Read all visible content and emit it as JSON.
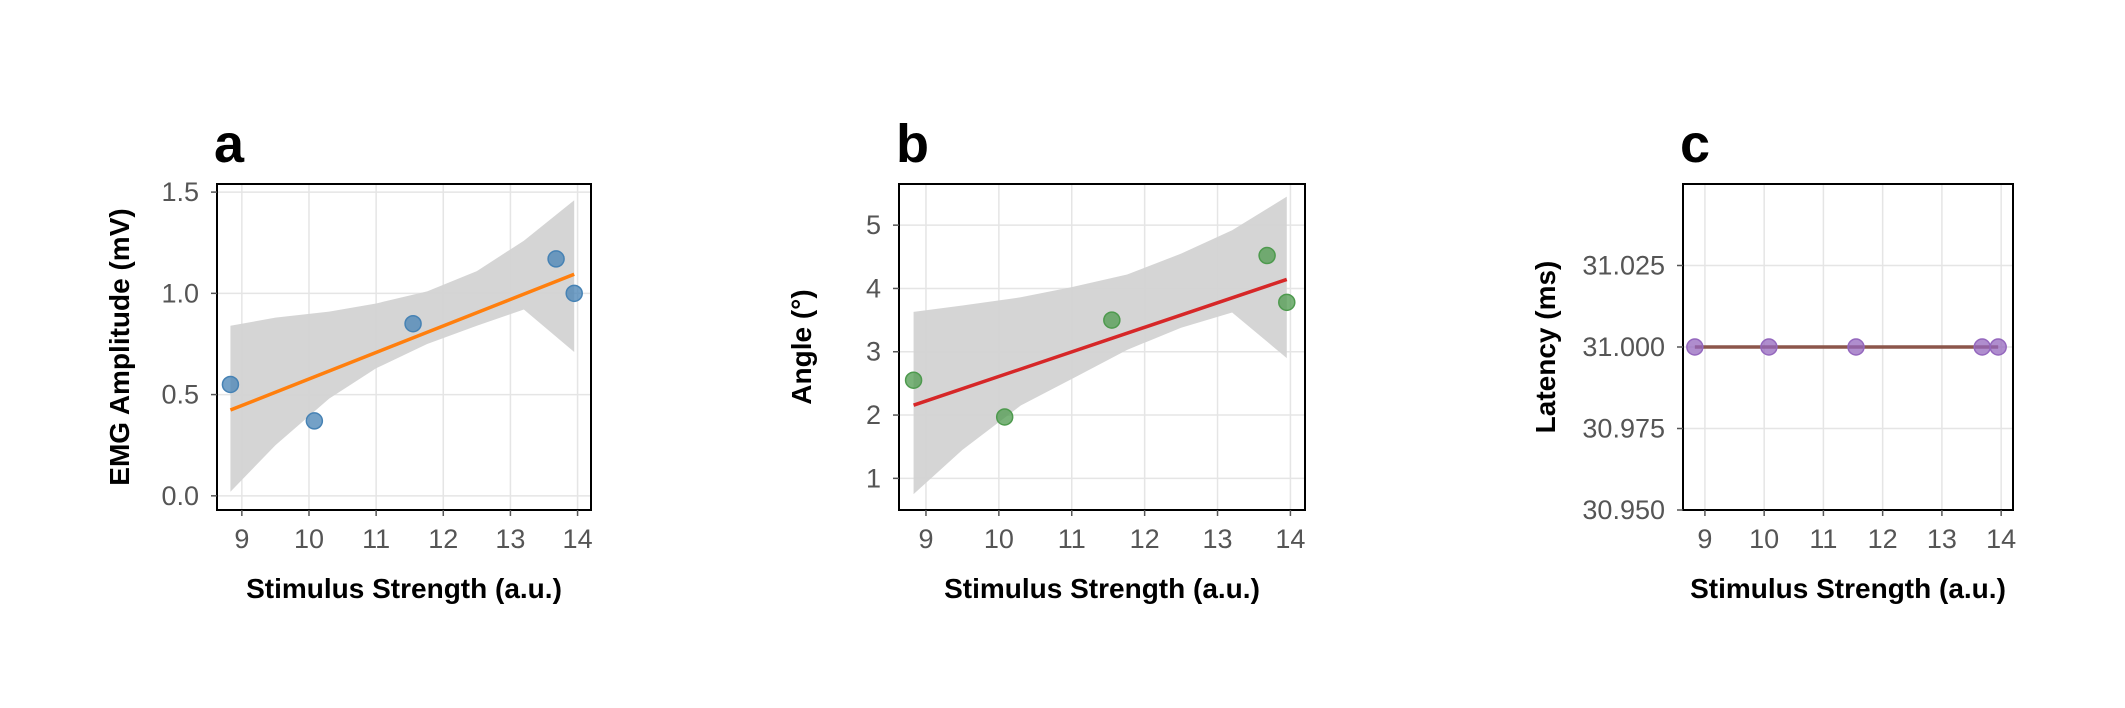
{
  "chart_data": [
    {
      "type": "scatter",
      "panel_label": "a",
      "xlabel": "Stimulus Strength (a.u.)",
      "ylabel": "EMG Amplitude (mV)",
      "xlim": [
        8.63,
        14.2
      ],
      "ylim": [
        -0.07,
        1.54
      ],
      "xticks": [
        "9",
        "10",
        "11",
        "12",
        "13",
        "14"
      ],
      "yticks": [
        "0.0",
        "0.5",
        "1.0",
        "1.5"
      ],
      "points": [
        [
          8.83,
          0.55
        ],
        [
          10.08,
          0.37
        ],
        [
          11.55,
          0.85
        ],
        [
          13.68,
          1.17
        ],
        [
          13.95,
          1.0
        ]
      ],
      "fit": {
        "slope": 0.131,
        "intercept": -0.733
      },
      "band": [
        [
          8.83,
          0.02,
          0.84
        ],
        [
          9.5,
          0.25,
          0.88
        ],
        [
          10.3,
          0.48,
          0.91
        ],
        [
          11.0,
          0.63,
          0.95
        ],
        [
          11.76,
          0.75,
          1.01
        ],
        [
          12.5,
          0.84,
          1.11
        ],
        [
          13.2,
          0.92,
          1.26
        ],
        [
          13.95,
          0.71,
          1.46
        ]
      ],
      "point_color": "#4682b4",
      "line_color": "#ff7f0e",
      "band_color": "#d3d3d3",
      "grid": true
    },
    {
      "type": "scatter",
      "panel_label": "b",
      "xlabel": "Stimulus Strength (a.u.)",
      "ylabel": "Angle (°)",
      "xlim": [
        8.63,
        14.2
      ],
      "ylim": [
        0.5,
        5.65
      ],
      "xticks": [
        "9",
        "10",
        "11",
        "12",
        "13",
        "14"
      ],
      "yticks": [
        "1",
        "2",
        "3",
        "4",
        "5"
      ],
      "points": [
        [
          8.83,
          2.55
        ],
        [
          10.08,
          1.97
        ],
        [
          11.55,
          3.5
        ],
        [
          13.68,
          4.52
        ],
        [
          13.95,
          3.78
        ]
      ],
      "fit": {
        "slope": 0.388,
        "intercept": -1.27
      },
      "band": [
        [
          8.83,
          0.75,
          3.63
        ],
        [
          9.5,
          1.45,
          3.73
        ],
        [
          10.3,
          2.15,
          3.86
        ],
        [
          11.0,
          2.57,
          4.02
        ],
        [
          11.76,
          3.03,
          4.22
        ],
        [
          12.5,
          3.38,
          4.55
        ],
        [
          13.2,
          3.62,
          4.92
        ],
        [
          13.95,
          2.9,
          5.45
        ]
      ],
      "point_color": "#4e9a4e",
      "line_color": "#d62728",
      "band_color": "#d3d3d3",
      "grid": true
    },
    {
      "type": "scatter",
      "panel_label": "c",
      "xlabel": "Stimulus Strength (a.u.)",
      "ylabel": "Latency (ms)",
      "xlim": [
        8.63,
        14.2
      ],
      "ylim": [
        30.95,
        31.05
      ],
      "xticks": [
        "9",
        "10",
        "11",
        "12",
        "13",
        "14"
      ],
      "yticks": [
        "30.950",
        "30.975",
        "31.000",
        "31.025"
      ],
      "points": [
        [
          8.83,
          31.0
        ],
        [
          10.08,
          31.0
        ],
        [
          11.55,
          31.0
        ],
        [
          13.68,
          31.0
        ],
        [
          13.95,
          31.0
        ]
      ],
      "fit": {
        "slope": 0.0,
        "intercept": 31.0
      },
      "band": [],
      "point_color": "#9467bd",
      "line_color": "#8c564b",
      "band_color": "#d3d3d3",
      "grid": true
    }
  ]
}
